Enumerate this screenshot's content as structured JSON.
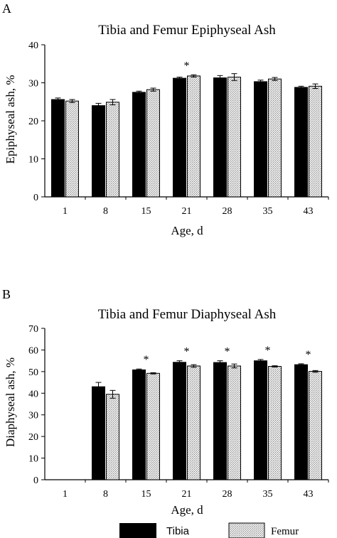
{
  "chart_data": [
    {
      "panel_label": "A",
      "type": "bar",
      "title": "Tibia and Femur Epiphyseal Ash",
      "xlabel": "Age, d",
      "ylabel": "Epiphyseal ash, %",
      "categories": [
        "1",
        "8",
        "15",
        "21",
        "28",
        "35",
        "43"
      ],
      "ylim": [
        0,
        40
      ],
      "yticks": [
        0,
        10,
        20,
        30,
        40
      ],
      "series": [
        {
          "name": "Tibia",
          "values": [
            25.6,
            24.0,
            27.5,
            31.2,
            31.3,
            30.3,
            28.8
          ],
          "errors": [
            0.4,
            0.6,
            0.3,
            0.3,
            0.6,
            0.4,
            0.3
          ]
        },
        {
          "name": "Femur",
          "values": [
            25.2,
            24.9,
            28.2,
            31.8,
            31.5,
            31.0,
            29.1
          ],
          "errors": [
            0.4,
            0.7,
            0.4,
            0.3,
            0.9,
            0.4,
            0.6
          ]
        }
      ],
      "significance": [
        "",
        "",
        "",
        "*",
        "",
        "",
        ""
      ]
    },
    {
      "panel_label": "B",
      "type": "bar",
      "title": "Tibia and Femur Diaphyseal Ash",
      "xlabel": "Age, d",
      "ylabel": "Diaphyseal ash, %",
      "categories": [
        "1",
        "8",
        "15",
        "21",
        "28",
        "35",
        "43"
      ],
      "ylim": [
        0,
        70
      ],
      "yticks": [
        0,
        10,
        20,
        30,
        40,
        50,
        60,
        70
      ],
      "series": [
        {
          "name": "Tibia",
          "values": [
            null,
            43.0,
            50.8,
            54.3,
            54.2,
            55.0,
            53.2
          ],
          "errors": [
            0,
            2.0,
            0.4,
            0.7,
            0.8,
            0.6,
            0.4
          ]
        },
        {
          "name": "Femur",
          "values": [
            null,
            39.5,
            49.2,
            52.6,
            52.6,
            52.4,
            50.1
          ],
          "errors": [
            0,
            1.8,
            0.3,
            0.6,
            0.9,
            0.3,
            0.4
          ]
        }
      ],
      "significance": [
        "",
        "",
        "*",
        "*",
        "*",
        "*",
        "*"
      ]
    }
  ],
  "legend": {
    "items": [
      {
        "label": "Tibia",
        "color": "#000000"
      },
      {
        "label": "Femur",
        "color": "#d4d4d4"
      }
    ]
  },
  "colors": {
    "tibia": "#000000",
    "femur": "#d4d4d4",
    "axis": "#000000"
  }
}
